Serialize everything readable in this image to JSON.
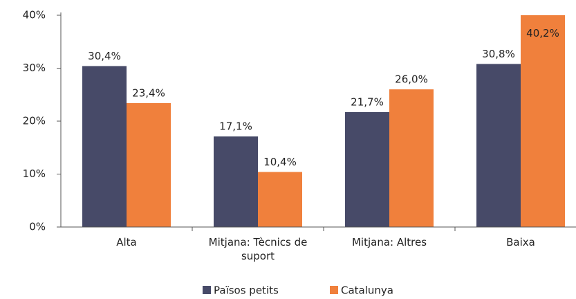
{
  "chart_data": {
    "type": "bar",
    "categories": [
      "Alta",
      "Mitjana: Tècnics de suport",
      "Mitjana: Altres",
      "Baixa"
    ],
    "series": [
      {
        "name": "Països petits",
        "color": "#474a68",
        "values": [
          30.4,
          17.1,
          21.7,
          30.8
        ],
        "value_labels": [
          "30,4%",
          "17,1%",
          "21,7%",
          "30,8%"
        ]
      },
      {
        "name": "Catalunya",
        "color": "#f0803c",
        "values": [
          23.4,
          10.4,
          26.0,
          40.2
        ],
        "value_labels": [
          "23,4%",
          "10,4%",
          "26,0%",
          "40,2%"
        ]
      }
    ],
    "ylim": [
      0,
      40
    ],
    "yticks": [
      {
        "value": 0,
        "label": "0%"
      },
      {
        "value": 10,
        "label": "10%"
      },
      {
        "value": 20,
        "label": "20%"
      },
      {
        "value": 30,
        "label": "30%"
      },
      {
        "value": 40,
        "label": "40%"
      }
    ],
    "legend": "bottom"
  }
}
